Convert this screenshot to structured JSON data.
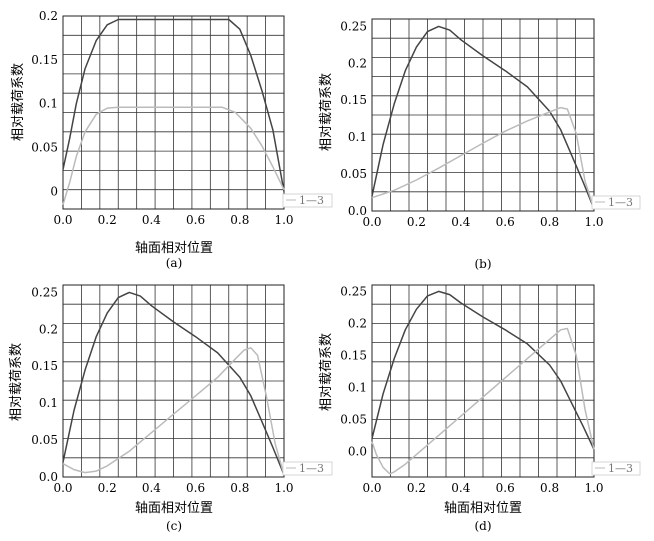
{
  "chart_data": [
    {
      "type": "line",
      "panel_label": "(a)",
      "xlabel": "轴面相对位置",
      "ylabel": "相对载荷系数",
      "xlim": [
        0,
        1.0
      ],
      "ylim": [
        -0.02,
        0.2
      ],
      "xticks": [
        "0.0",
        "0.2",
        "0.4",
        "0.6",
        "0.8",
        "1.0"
      ],
      "yticks": [
        "0",
        "0.05",
        "0.1",
        "0.15",
        "0.2"
      ],
      "ytick_values": [
        0,
        0.05,
        0.1,
        0.15,
        0.2
      ],
      "grid": true,
      "legend": [
        "1—3"
      ],
      "legend_position": "bottom-right",
      "series": [
        {
          "color": "#444444",
          "x": [
            0.0,
            0.03,
            0.06,
            0.1,
            0.15,
            0.2,
            0.25,
            0.3,
            0.5,
            0.7,
            0.75,
            0.8,
            0.85,
            0.9,
            0.95,
            1.0
          ],
          "y": [
            0.025,
            0.06,
            0.1,
            0.14,
            0.172,
            0.19,
            0.196,
            0.196,
            0.196,
            0.196,
            0.196,
            0.185,
            0.155,
            0.115,
            0.07,
            0.0
          ]
        },
        {
          "color": "#bbbbbb",
          "x": [
            0.0,
            0.03,
            0.06,
            0.1,
            0.15,
            0.2,
            0.25,
            0.5,
            0.72,
            0.78,
            0.85,
            0.9,
            0.95,
            1.0
          ],
          "y": [
            -0.015,
            0.01,
            0.04,
            0.068,
            0.088,
            0.095,
            0.096,
            0.096,
            0.096,
            0.09,
            0.072,
            0.052,
            0.028,
            0.002
          ]
        }
      ]
    },
    {
      "type": "line",
      "panel_label": "(b)",
      "xlabel": "",
      "ylabel": "相对载荷系数",
      "xlim": [
        0,
        1.0
      ],
      "ylim": [
        0,
        0.26
      ],
      "xticks": [
        "0.0",
        "0.2",
        "0.4",
        "0.6",
        "0.8",
        "1.0"
      ],
      "yticks": [
        "0.0",
        "0.05",
        "0.1",
        "0.15",
        "0.2",
        "0.25"
      ],
      "ytick_values": [
        0,
        0.05,
        0.1,
        0.15,
        0.2,
        0.25
      ],
      "grid": true,
      "legend": [
        "1—3"
      ],
      "legend_position": "bottom-right",
      "series": [
        {
          "color": "#444444",
          "x": [
            0.0,
            0.05,
            0.1,
            0.15,
            0.2,
            0.25,
            0.3,
            0.35,
            0.4,
            0.5,
            0.6,
            0.7,
            0.8,
            0.85,
            0.9,
            0.95,
            1.0
          ],
          "y": [
            0.02,
            0.09,
            0.145,
            0.19,
            0.222,
            0.243,
            0.25,
            0.245,
            0.232,
            0.21,
            0.19,
            0.168,
            0.135,
            0.11,
            0.075,
            0.04,
            0.003
          ]
        },
        {
          "color": "#bbbbbb",
          "x": [
            0.0,
            0.1,
            0.2,
            0.3,
            0.4,
            0.5,
            0.6,
            0.7,
            0.8,
            0.85,
            0.88,
            0.92,
            0.96,
            1.0
          ],
          "y": [
            0.018,
            0.028,
            0.042,
            0.058,
            0.075,
            0.092,
            0.108,
            0.122,
            0.134,
            0.14,
            0.138,
            0.105,
            0.04,
            0.003
          ]
        }
      ]
    },
    {
      "type": "line",
      "panel_label": "(c)",
      "xlabel": "轴面相对位置",
      "ylabel": "相对载荷系数",
      "xlim": [
        0,
        1.0
      ],
      "ylim": [
        0,
        0.26
      ],
      "xticks": [
        "0.0",
        "0.2",
        "0.4",
        "0.6",
        "0.8",
        "1.0"
      ],
      "yticks": [
        "0.0",
        "0.05",
        "0.1",
        "0.15",
        "0.2",
        "0.25"
      ],
      "ytick_values": [
        0,
        0.05,
        0.1,
        0.15,
        0.2,
        0.25
      ],
      "grid": true,
      "legend": [
        "1—3"
      ],
      "legend_position": "bottom-right",
      "series": [
        {
          "color": "#444444",
          "x": [
            0.0,
            0.05,
            0.1,
            0.15,
            0.2,
            0.25,
            0.3,
            0.35,
            0.4,
            0.5,
            0.6,
            0.7,
            0.8,
            0.85,
            0.9,
            0.95,
            1.0
          ],
          "y": [
            0.02,
            0.09,
            0.145,
            0.19,
            0.222,
            0.243,
            0.25,
            0.245,
            0.232,
            0.21,
            0.19,
            0.168,
            0.135,
            0.11,
            0.075,
            0.04,
            0.003
          ]
        },
        {
          "color": "#bbbbbb",
          "x": [
            0.0,
            0.05,
            0.1,
            0.15,
            0.2,
            0.3,
            0.4,
            0.5,
            0.6,
            0.7,
            0.78,
            0.82,
            0.85,
            0.88,
            0.92,
            0.96,
            1.0
          ],
          "y": [
            0.018,
            0.01,
            0.006,
            0.008,
            0.015,
            0.035,
            0.06,
            0.085,
            0.11,
            0.135,
            0.16,
            0.172,
            0.175,
            0.165,
            0.11,
            0.045,
            0.003
          ]
        }
      ]
    },
    {
      "type": "line",
      "panel_label": "(d)",
      "xlabel": "轴面相对位置",
      "ylabel": "相对载荷系数",
      "xlim": [
        0,
        1.0
      ],
      "ylim": [
        -0.04,
        0.26
      ],
      "xticks": [
        "0.0",
        "0.2",
        "0.4",
        "0.6",
        "0.8",
        "1.0"
      ],
      "yticks": [
        "0.0",
        "0.05",
        "0.1",
        "0.15",
        "0.2",
        "0.25"
      ],
      "ytick_values": [
        0,
        0.05,
        0.1,
        0.15,
        0.2,
        0.25
      ],
      "grid": true,
      "legend": [
        "1—3"
      ],
      "legend_position": "bottom-right",
      "series": [
        {
          "color": "#444444",
          "x": [
            0.0,
            0.05,
            0.1,
            0.15,
            0.2,
            0.25,
            0.3,
            0.35,
            0.4,
            0.5,
            0.6,
            0.7,
            0.8,
            0.85,
            0.9,
            0.95,
            1.0
          ],
          "y": [
            0.02,
            0.09,
            0.145,
            0.19,
            0.222,
            0.243,
            0.25,
            0.245,
            0.232,
            0.21,
            0.19,
            0.168,
            0.135,
            0.11,
            0.075,
            0.04,
            0.003
          ]
        },
        {
          "color": "#bbbbbb",
          "x": [
            0.0,
            0.02,
            0.05,
            0.08,
            0.1,
            0.15,
            0.2,
            0.3,
            0.4,
            0.5,
            0.6,
            0.7,
            0.8,
            0.85,
            0.88,
            0.92,
            0.96,
            1.0
          ],
          "y": [
            0.015,
            -0.005,
            -0.025,
            -0.035,
            -0.032,
            -0.02,
            -0.005,
            0.025,
            0.055,
            0.085,
            0.115,
            0.145,
            0.175,
            0.19,
            0.192,
            0.15,
            0.065,
            0.003
          ]
        }
      ]
    }
  ]
}
